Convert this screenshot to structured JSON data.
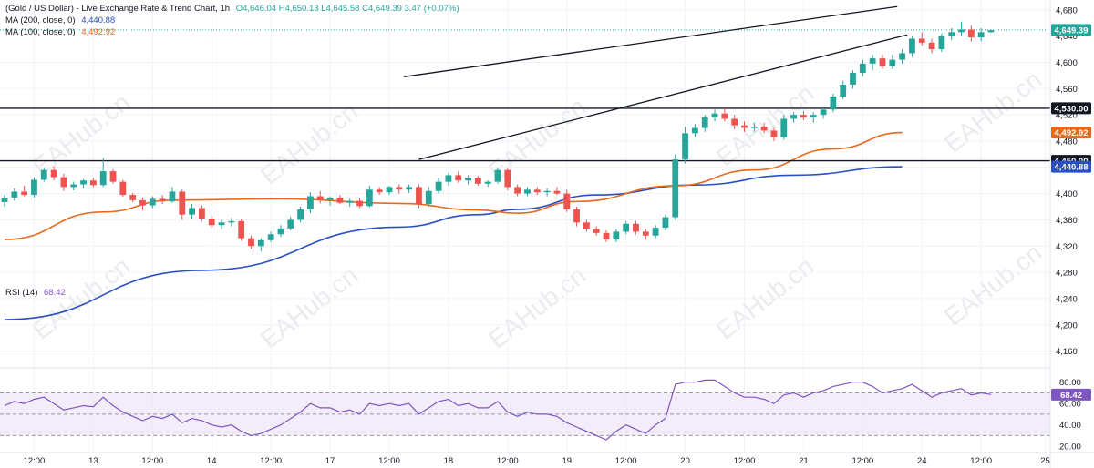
{
  "header": {
    "title": "(Gold / US Dollar) - Live Exchange Rate & Trend Chart, 1h",
    "ohlc": "O4,646.04  H4,650.13  L4,645.58  C4,649.39  3.47 (+0.07%)",
    "ma200_label": "MA (200, close, 0)",
    "ma200_value": "4,440.88",
    "ma100_label": "MA (100, close, 0)",
    "ma100_value": "4,492.92"
  },
  "rsi_legend": {
    "label": "RSI (14)",
    "value": "68.42"
  },
  "watermark": "EAHub.cn",
  "colors": {
    "up": "#26a69a",
    "down": "#ef5350",
    "ma200": "#2a4fc4",
    "ma100": "#e8681c",
    "rsi": "#7e57c2",
    "rsi_band": "#ede7f6",
    "level": "#131722",
    "grid": "#f0f3fa"
  },
  "chart_data": {
    "type": "candlestick",
    "symbol": "XAUUSD",
    "timeframe": "1h",
    "ylim": [
      4140,
      4695
    ],
    "y_ticks": [
      4160,
      4200,
      4240,
      4280,
      4320,
      4360,
      4400,
      4440,
      4480,
      4520,
      4560,
      4600,
      4640,
      4680
    ],
    "x_ticks": [
      "12:00",
      "13",
      "12:00",
      "14",
      "12:00",
      "17",
      "12:00",
      "18",
      "12:00",
      "19",
      "12:00",
      "20",
      "12:00",
      "21",
      "12:00",
      "24",
      "12:00",
      "25"
    ],
    "price_tags": [
      {
        "value": "4,649.39",
        "price": 4649.39,
        "color": "#26a69a"
      },
      {
        "value": "4,530.00",
        "price": 4530,
        "color": "#131722"
      },
      {
        "value": "4,492.92",
        "price": 4492.92,
        "color": "#e8681c"
      },
      {
        "value": "4,450.00",
        "price": 4450,
        "color": "#131722"
      },
      {
        "value": "4,440.88",
        "price": 4440.88,
        "color": "#2a4fc4"
      }
    ],
    "horizontal_levels": [
      4530,
      4450
    ],
    "channel": {
      "upper": {
        "from": [
          40.5,
          4578
        ],
        "to": [
          90.5,
          4685
        ]
      },
      "lower": {
        "from": [
          42,
          4452
        ],
        "to": [
          91.5,
          4642
        ]
      }
    },
    "ma200_curve": [
      [
        0,
        4208
      ],
      [
        20,
        4283
      ],
      [
        40,
        4349
      ],
      [
        48,
        4368
      ],
      [
        52,
        4376
      ],
      [
        60,
        4398
      ],
      [
        70,
        4413
      ],
      [
        80,
        4428
      ],
      [
        91,
        4441
      ]
    ],
    "ma100_curve": [
      [
        0,
        4330
      ],
      [
        10,
        4372
      ],
      [
        17,
        4390
      ],
      [
        28,
        4392
      ],
      [
        40,
        4385
      ],
      [
        48,
        4375
      ],
      [
        52,
        4370
      ],
      [
        58,
        4388
      ],
      [
        68,
        4412
      ],
      [
        76,
        4436
      ],
      [
        84,
        4468
      ],
      [
        91,
        4493
      ]
    ],
    "candles": [
      [
        0,
        4387,
        4398,
        4380,
        4394
      ],
      [
        1,
        4394,
        4408,
        4389,
        4403
      ],
      [
        2,
        4403,
        4412,
        4396,
        4398
      ],
      [
        3,
        4398,
        4425,
        4394,
        4421
      ],
      [
        4,
        4421,
        4440,
        4418,
        4436
      ],
      [
        5,
        4436,
        4442,
        4420,
        4425
      ],
      [
        6,
        4425,
        4430,
        4404,
        4410
      ],
      [
        7,
        4410,
        4418,
        4405,
        4414
      ],
      [
        8,
        4414,
        4422,
        4408,
        4420
      ],
      [
        9,
        4420,
        4424,
        4410,
        4413
      ],
      [
        10,
        4413,
        4454,
        4410,
        4434
      ],
      [
        11,
        4434,
        4437,
        4415,
        4418
      ],
      [
        12,
        4418,
        4421,
        4395,
        4398
      ],
      [
        13,
        4398,
        4401,
        4387,
        4390
      ],
      [
        14,
        4390,
        4394,
        4375,
        4382
      ],
      [
        15,
        4382,
        4396,
        4378,
        4392
      ],
      [
        16,
        4392,
        4398,
        4384,
        4388
      ],
      [
        17,
        4388,
        4410,
        4386,
        4403
      ],
      [
        18,
        4403,
        4406,
        4360,
        4368
      ],
      [
        19,
        4368,
        4384,
        4362,
        4378
      ],
      [
        20,
        4378,
        4382,
        4358,
        4362
      ],
      [
        21,
        4362,
        4366,
        4348,
        4352
      ],
      [
        22,
        4352,
        4360,
        4346,
        4356
      ],
      [
        23,
        4356,
        4363,
        4350,
        4358
      ],
      [
        24,
        4358,
        4362,
        4328,
        4332
      ],
      [
        25,
        4332,
        4336,
        4316,
        4320
      ],
      [
        26,
        4320,
        4332,
        4312,
        4329
      ],
      [
        27,
        4329,
        4342,
        4326,
        4338
      ],
      [
        28,
        4338,
        4352,
        4334,
        4347
      ],
      [
        29,
        4347,
        4365,
        4344,
        4360
      ],
      [
        30,
        4360,
        4380,
        4356,
        4376
      ],
      [
        31,
        4376,
        4402,
        4370,
        4396
      ],
      [
        32,
        4396,
        4404,
        4385,
        4390
      ],
      [
        33,
        4390,
        4396,
        4382,
        4394
      ],
      [
        34,
        4394,
        4398,
        4384,
        4386
      ],
      [
        35,
        4386,
        4392,
        4380,
        4389
      ],
      [
        36,
        4389,
        4393,
        4378,
        4381
      ],
      [
        37,
        4381,
        4412,
        4379,
        4406
      ],
      [
        38,
        4406,
        4410,
        4398,
        4402
      ],
      [
        39,
        4402,
        4412,
        4398,
        4410
      ],
      [
        40,
        4410,
        4414,
        4400,
        4406
      ],
      [
        41,
        4406,
        4414,
        4401,
        4410
      ],
      [
        42,
        4410,
        4414,
        4378,
        4384
      ],
      [
        43,
        4384,
        4410,
        4380,
        4404
      ],
      [
        44,
        4404,
        4424,
        4400,
        4418
      ],
      [
        45,
        4418,
        4432,
        4412,
        4428
      ],
      [
        46,
        4428,
        4434,
        4416,
        4420
      ],
      [
        47,
        4420,
        4428,
        4414,
        4424
      ],
      [
        48,
        4424,
        4427,
        4412,
        4415
      ],
      [
        49,
        4415,
        4420,
        4410,
        4418
      ],
      [
        50,
        4418,
        4440,
        4415,
        4436
      ],
      [
        51,
        4436,
        4440,
        4405,
        4410
      ],
      [
        52,
        4410,
        4414,
        4396,
        4400
      ],
      [
        53,
        4400,
        4410,
        4396,
        4406
      ],
      [
        54,
        4406,
        4410,
        4398,
        4402
      ],
      [
        55,
        4402,
        4408,
        4396,
        4404
      ],
      [
        56,
        4404,
        4410,
        4398,
        4400
      ],
      [
        57,
        4400,
        4406,
        4372,
        4376
      ],
      [
        58,
        4376,
        4380,
        4350,
        4356
      ],
      [
        59,
        4356,
        4360,
        4342,
        4346
      ],
      [
        60,
        4346,
        4350,
        4336,
        4340
      ],
      [
        61,
        4340,
        4344,
        4326,
        4330
      ],
      [
        62,
        4330,
        4346,
        4326,
        4342
      ],
      [
        63,
        4342,
        4358,
        4338,
        4354
      ],
      [
        64,
        4354,
        4358,
        4338,
        4342
      ],
      [
        65,
        4342,
        4346,
        4330,
        4336
      ],
      [
        66,
        4336,
        4352,
        4332,
        4348
      ],
      [
        67,
        4348,
        4368,
        4344,
        4364
      ],
      [
        68,
        4364,
        4460,
        4360,
        4452
      ],
      [
        69,
        4452,
        4502,
        4446,
        4492
      ],
      [
        70,
        4492,
        4506,
        4486,
        4500
      ],
      [
        71,
        4500,
        4520,
        4494,
        4516
      ],
      [
        72,
        4516,
        4528,
        4510,
        4522
      ],
      [
        73,
        4522,
        4530,
        4510,
        4514
      ],
      [
        74,
        4514,
        4520,
        4498,
        4504
      ],
      [
        75,
        4504,
        4510,
        4494,
        4500
      ],
      [
        76,
        4500,
        4508,
        4494,
        4502
      ],
      [
        77,
        4502,
        4508,
        4492,
        4496
      ],
      [
        78,
        4496,
        4500,
        4480,
        4486
      ],
      [
        79,
        4486,
        4520,
        4482,
        4514
      ],
      [
        80,
        4514,
        4524,
        4508,
        4520
      ],
      [
        81,
        4520,
        4526,
        4512,
        4516
      ],
      [
        82,
        4516,
        4524,
        4508,
        4520
      ],
      [
        83,
        4520,
        4532,
        4514,
        4528
      ],
      [
        84,
        4528,
        4552,
        4524,
        4548
      ],
      [
        85,
        4548,
        4572,
        4544,
        4566
      ],
      [
        86,
        4566,
        4588,
        4560,
        4584
      ],
      [
        87,
        4584,
        4604,
        4578,
        4598
      ],
      [
        88,
        4598,
        4612,
        4588,
        4606
      ],
      [
        89,
        4606,
        4612,
        4590,
        4594
      ],
      [
        90,
        4594,
        4612,
        4590,
        4604
      ],
      [
        91,
        4604,
        4620,
        4598,
        4614
      ],
      [
        92,
        4614,
        4640,
        4608,
        4636
      ],
      [
        93,
        4636,
        4646,
        4626,
        4630
      ],
      [
        94,
        4630,
        4636,
        4614,
        4620
      ],
      [
        95,
        4620,
        4644,
        4616,
        4640
      ],
      [
        96,
        4640,
        4652,
        4634,
        4646
      ],
      [
        97,
        4646,
        4662,
        4640,
        4650
      ],
      [
        98,
        4650,
        4656,
        4632,
        4638
      ],
      [
        99,
        4638,
        4652,
        4632,
        4646
      ],
      [
        100,
        4646,
        4650,
        4645,
        4649
      ]
    ],
    "rsi": {
      "ylim": [
        15,
        90
      ],
      "y_ticks": [
        20,
        40,
        60,
        80
      ],
      "levels": [
        70,
        50,
        30
      ],
      "values": [
        58,
        62,
        60,
        64,
        66,
        60,
        54,
        56,
        58,
        57,
        66,
        58,
        52,
        48,
        44,
        48,
        46,
        50,
        42,
        46,
        44,
        40,
        38,
        40,
        34,
        30,
        32,
        36,
        40,
        46,
        52,
        60,
        56,
        56,
        52,
        54,
        50,
        60,
        58,
        60,
        58,
        60,
        50,
        56,
        62,
        64,
        58,
        60,
        56,
        56,
        62,
        52,
        48,
        52,
        50,
        50,
        48,
        42,
        38,
        34,
        30,
        26,
        34,
        40,
        36,
        32,
        40,
        46,
        78,
        80,
        80,
        82,
        82,
        76,
        70,
        66,
        66,
        64,
        60,
        68,
        70,
        66,
        70,
        72,
        76,
        78,
        80,
        80,
        76,
        70,
        72,
        74,
        78,
        72,
        66,
        70,
        72,
        74,
        68,
        70,
        68.42
      ]
    }
  }
}
